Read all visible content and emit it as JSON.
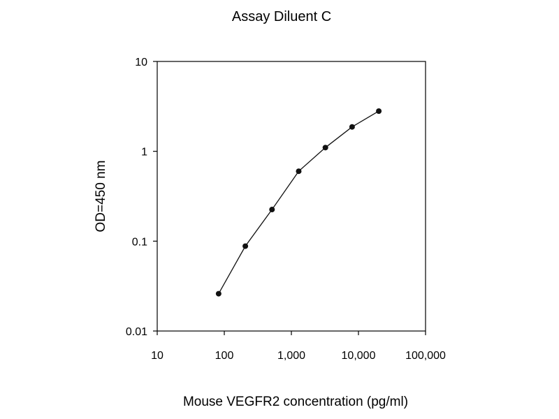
{
  "chart_data": {
    "type": "scatter",
    "title": "Assay Diluent C",
    "xlabel": "Mouse VEGFR2 concentration (pg/ml)",
    "ylabel": "OD=450 nm",
    "x_scale": "log",
    "y_scale": "log",
    "xlim": [
      10,
      100000
    ],
    "ylim": [
      0.01,
      10
    ],
    "x_ticks": [
      10,
      100,
      1000,
      10000,
      100000
    ],
    "x_tick_labels": [
      "10",
      "100",
      "1,000",
      "10,000",
      "100,000"
    ],
    "y_ticks": [
      0.01,
      0.1,
      1,
      10
    ],
    "y_tick_labels": [
      "0.01",
      "0.1",
      "1",
      "10"
    ],
    "grid": false,
    "legend": "none",
    "connected": true,
    "series": [
      {
        "x": [
          82.3,
          205.8,
          514.4,
          1286,
          3215,
          8038,
          20096
        ],
        "y": [
          0.026,
          0.088,
          0.225,
          0.6,
          1.1,
          1.87,
          2.8
        ]
      }
    ],
    "colors": {
      "line": "#111111",
      "marker": "#111111",
      "axis": "#000000"
    }
  }
}
